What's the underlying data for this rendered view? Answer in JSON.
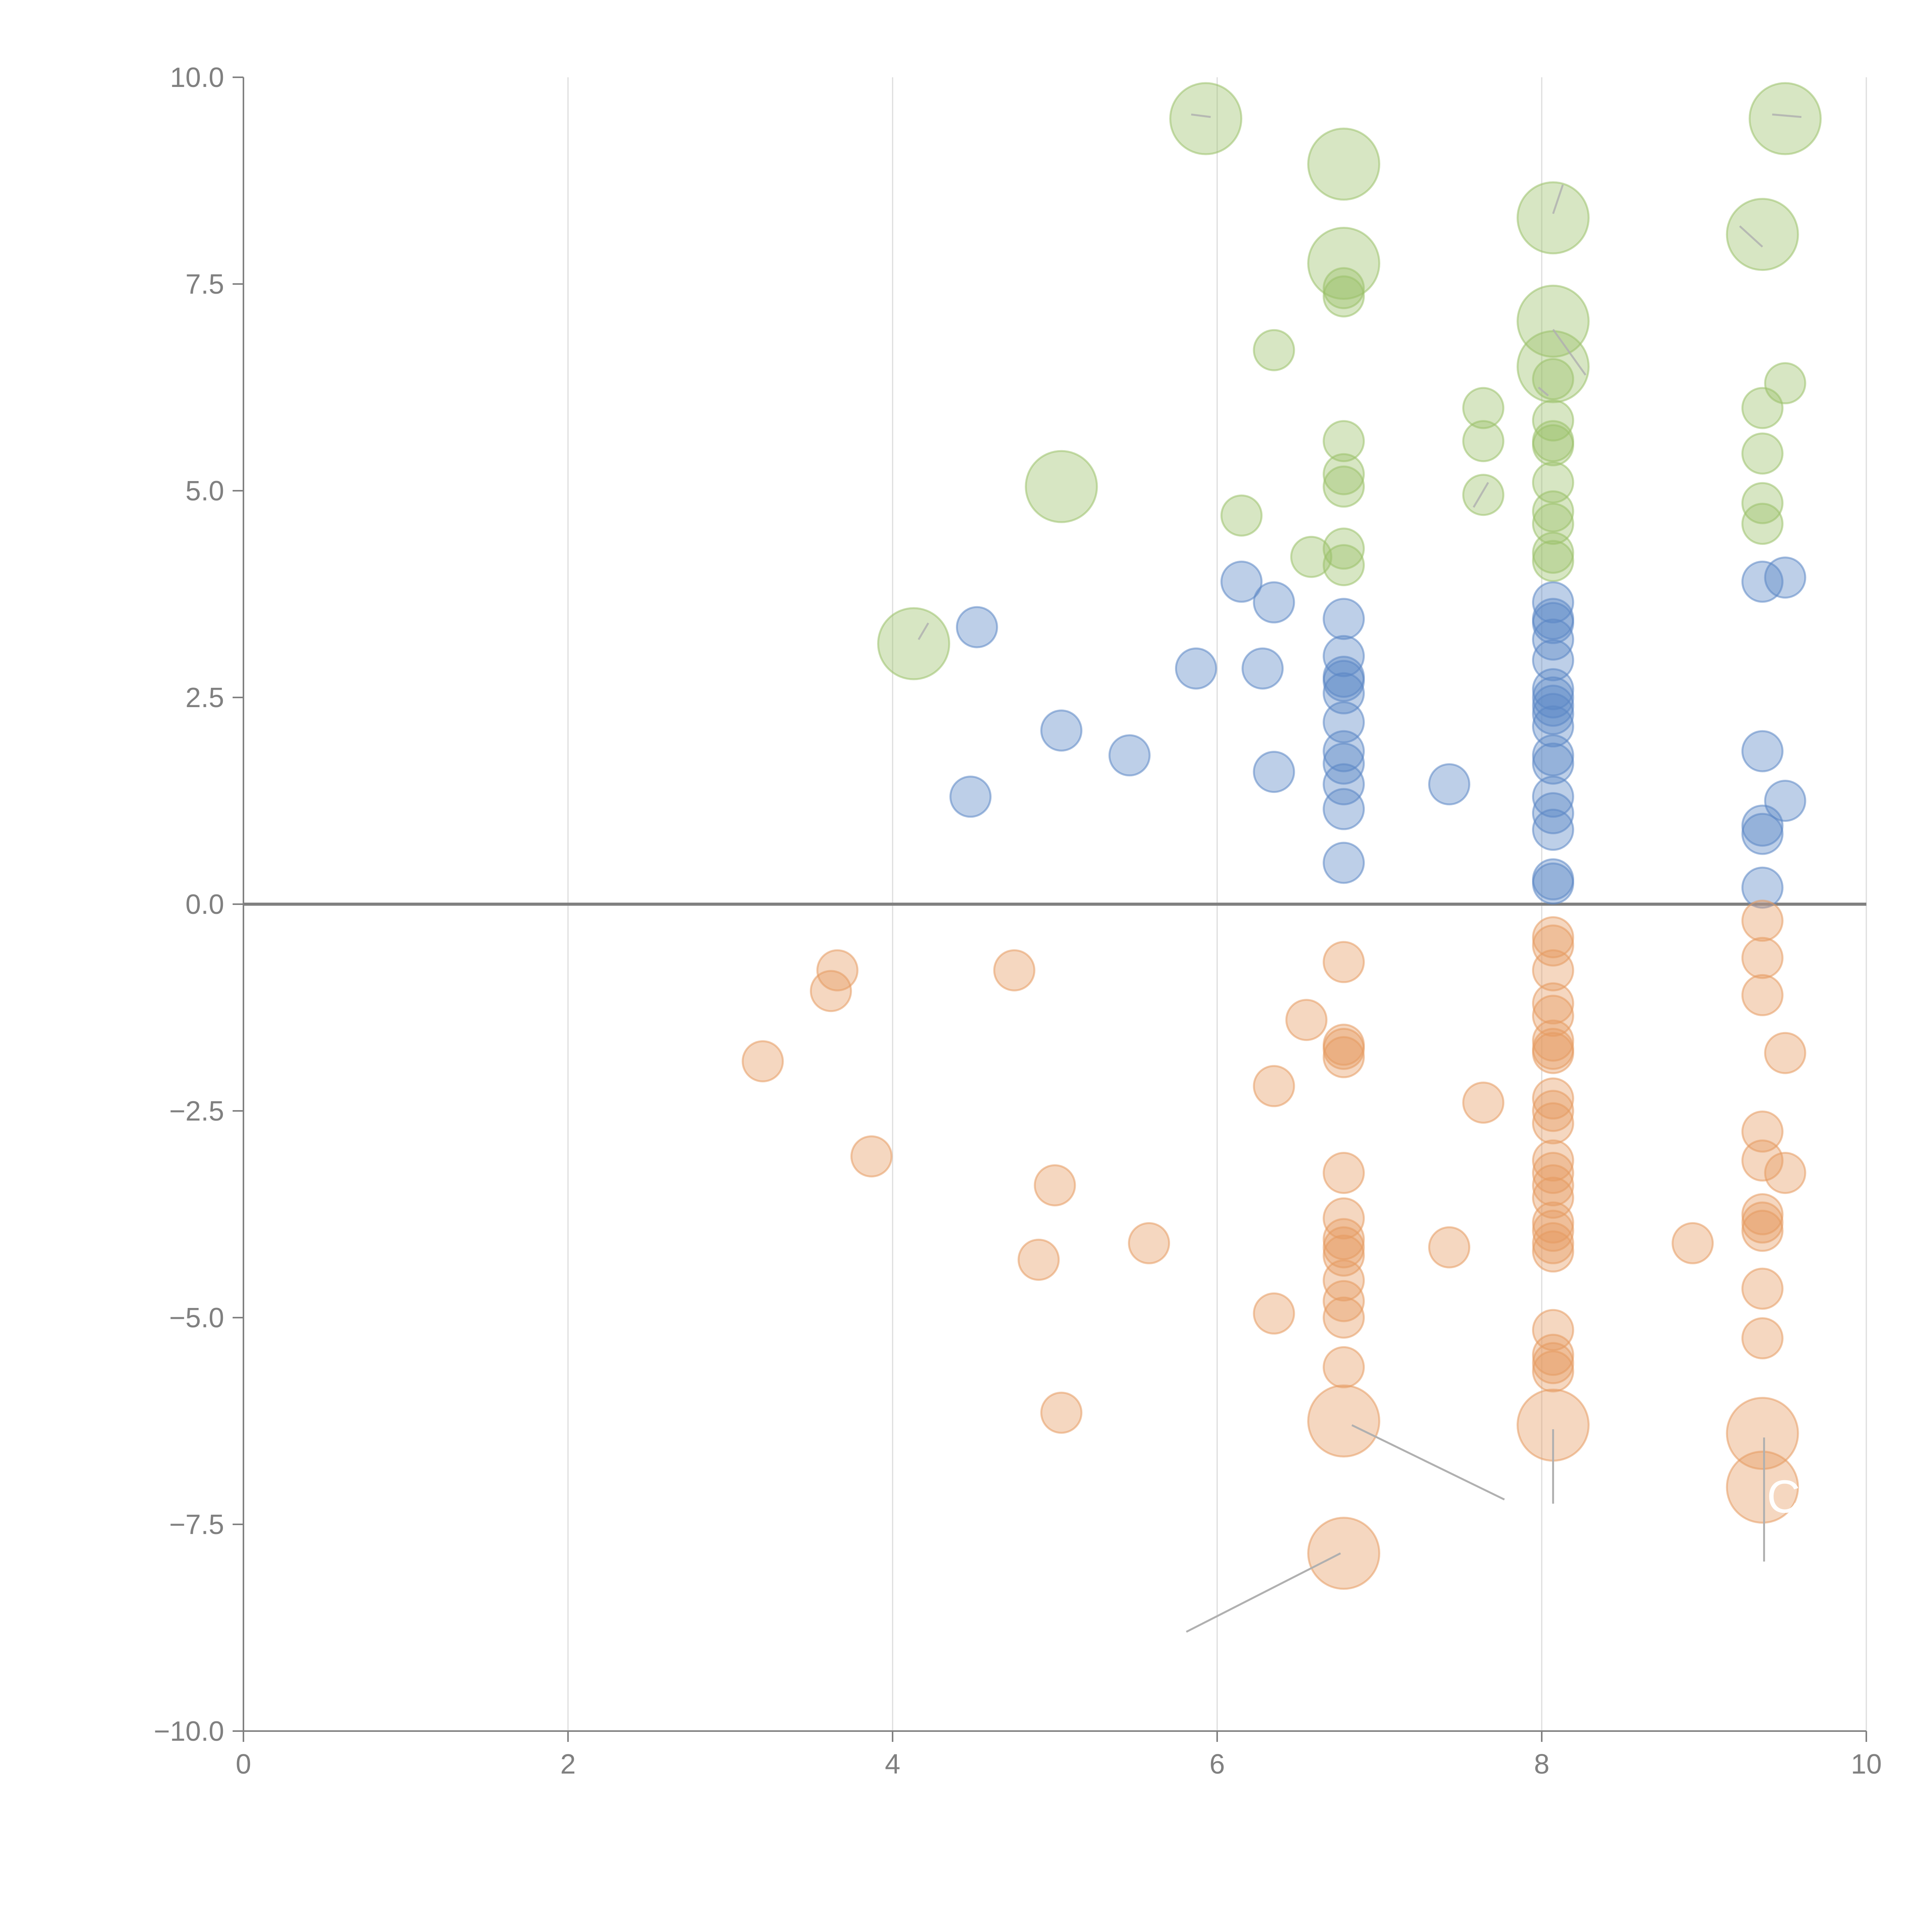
{
  "chart_data": {
    "type": "scatter",
    "title": "",
    "xlabel": "",
    "ylabel": "",
    "xlim": [
      0,
      10
    ],
    "ylim": [
      -10,
      10
    ],
    "grid": "vertical",
    "x_ticks": [
      "0",
      "2",
      "4",
      "6",
      "8",
      "10"
    ],
    "y_ticks": [
      "10.0",
      "7.5",
      "5.0",
      "2.5",
      "0.0",
      "−2.5",
      "−5.0",
      "−7.5",
      "−10.0"
    ],
    "colors": {
      "green": "#9bc16a",
      "blue": "#5b87c5",
      "orange": "#e59a61",
      "axis": "#808080",
      "grid": "#dcdcdc"
    },
    "series": [
      {
        "name": "green",
        "points": [
          {
            "x": 5.93,
            "y": 9.5,
            "s": 3
          },
          {
            "x": 6.78,
            "y": 8.95,
            "s": 3
          },
          {
            "x": 6.78,
            "y": 7.75,
            "s": 3
          },
          {
            "x": 6.78,
            "y": 7.45,
            "s": 1
          },
          {
            "x": 6.78,
            "y": 7.35,
            "s": 1
          },
          {
            "x": 6.35,
            "y": 6.7,
            "s": 1
          },
          {
            "x": 6.78,
            "y": 5.6,
            "s": 1
          },
          {
            "x": 6.78,
            "y": 5.2,
            "s": 1
          },
          {
            "x": 6.78,
            "y": 5.05,
            "s": 1
          },
          {
            "x": 6.78,
            "y": 4.3,
            "s": 1
          },
          {
            "x": 6.78,
            "y": 4.1,
            "s": 1
          },
          {
            "x": 6.58,
            "y": 4.2,
            "s": 1
          },
          {
            "x": 6.15,
            "y": 4.7,
            "s": 1
          },
          {
            "x": 5.04,
            "y": 5.05,
            "s": 3
          },
          {
            "x": 4.13,
            "y": 3.15,
            "s": 3
          },
          {
            "x": 7.64,
            "y": 6.0,
            "s": 1
          },
          {
            "x": 7.64,
            "y": 5.6,
            "s": 1
          },
          {
            "x": 7.64,
            "y": 4.95,
            "s": 1
          },
          {
            "x": 8.07,
            "y": 8.3,
            "s": 3
          },
          {
            "x": 8.07,
            "y": 7.05,
            "s": 3
          },
          {
            "x": 8.07,
            "y": 6.5,
            "s": 3
          },
          {
            "x": 8.07,
            "y": 6.35,
            "s": 1
          },
          {
            "x": 8.07,
            "y": 5.85,
            "s": 1
          },
          {
            "x": 8.07,
            "y": 5.6,
            "s": 1
          },
          {
            "x": 8.07,
            "y": 5.55,
            "s": 1
          },
          {
            "x": 8.07,
            "y": 5.1,
            "s": 1
          },
          {
            "x": 8.07,
            "y": 4.75,
            "s": 1
          },
          {
            "x": 8.07,
            "y": 4.6,
            "s": 1
          },
          {
            "x": 8.07,
            "y": 4.25,
            "s": 1
          },
          {
            "x": 8.07,
            "y": 4.15,
            "s": 1
          },
          {
            "x": 9.36,
            "y": 8.1,
            "s": 3
          },
          {
            "x": 9.5,
            "y": 9.5,
            "s": 3
          },
          {
            "x": 9.5,
            "y": 6.3,
            "s": 1
          },
          {
            "x": 9.36,
            "y": 6.0,
            "s": 1
          },
          {
            "x": 9.36,
            "y": 5.45,
            "s": 1
          },
          {
            "x": 9.36,
            "y": 4.85,
            "s": 1
          },
          {
            "x": 9.36,
            "y": 4.6,
            "s": 1
          }
        ]
      },
      {
        "name": "blue",
        "points": [
          {
            "x": 4.48,
            "y": 1.3,
            "s": 1
          },
          {
            "x": 4.52,
            "y": 3.35,
            "s": 1
          },
          {
            "x": 5.04,
            "y": 2.1,
            "s": 1
          },
          {
            "x": 5.46,
            "y": 1.8,
            "s": 1
          },
          {
            "x": 5.87,
            "y": 2.85,
            "s": 1
          },
          {
            "x": 6.28,
            "y": 2.85,
            "s": 1
          },
          {
            "x": 6.35,
            "y": 3.65,
            "s": 1
          },
          {
            "x": 6.15,
            "y": 3.9,
            "s": 1
          },
          {
            "x": 6.35,
            "y": 1.6,
            "s": 1
          },
          {
            "x": 6.78,
            "y": 3.45,
            "s": 1
          },
          {
            "x": 6.78,
            "y": 3.0,
            "s": 1
          },
          {
            "x": 6.78,
            "y": 2.75,
            "s": 1
          },
          {
            "x": 6.78,
            "y": 2.7,
            "s": 1
          },
          {
            "x": 6.78,
            "y": 2.55,
            "s": 1
          },
          {
            "x": 6.78,
            "y": 2.2,
            "s": 1
          },
          {
            "x": 6.78,
            "y": 1.85,
            "s": 1
          },
          {
            "x": 6.78,
            "y": 1.7,
            "s": 1
          },
          {
            "x": 6.78,
            "y": 1.45,
            "s": 1
          },
          {
            "x": 6.78,
            "y": 1.15,
            "s": 1
          },
          {
            "x": 6.78,
            "y": 0.5,
            "s": 1
          },
          {
            "x": 7.43,
            "y": 1.45,
            "s": 1
          },
          {
            "x": 8.07,
            "y": 3.65,
            "s": 1
          },
          {
            "x": 8.07,
            "y": 3.45,
            "s": 1
          },
          {
            "x": 8.07,
            "y": 3.4,
            "s": 1
          },
          {
            "x": 8.07,
            "y": 3.2,
            "s": 1
          },
          {
            "x": 8.07,
            "y": 2.95,
            "s": 1
          },
          {
            "x": 8.07,
            "y": 2.6,
            "s": 1
          },
          {
            "x": 8.07,
            "y": 2.5,
            "s": 1
          },
          {
            "x": 8.07,
            "y": 2.4,
            "s": 1
          },
          {
            "x": 8.07,
            "y": 2.3,
            "s": 1
          },
          {
            "x": 8.07,
            "y": 2.15,
            "s": 1
          },
          {
            "x": 8.07,
            "y": 1.8,
            "s": 1
          },
          {
            "x": 8.07,
            "y": 1.7,
            "s": 1
          },
          {
            "x": 8.07,
            "y": 1.3,
            "s": 1
          },
          {
            "x": 8.07,
            "y": 1.1,
            "s": 1
          },
          {
            "x": 8.07,
            "y": 0.9,
            "s": 1
          },
          {
            "x": 8.07,
            "y": 0.3,
            "s": 1
          },
          {
            "x": 8.07,
            "y": 0.25,
            "s": 1
          },
          {
            "x": 9.36,
            "y": 3.9,
            "s": 1
          },
          {
            "x": 9.5,
            "y": 3.95,
            "s": 1
          },
          {
            "x": 9.36,
            "y": 1.85,
            "s": 1
          },
          {
            "x": 9.5,
            "y": 1.25,
            "s": 1
          },
          {
            "x": 9.36,
            "y": 0.95,
            "s": 1
          },
          {
            "x": 9.36,
            "y": 0.85,
            "s": 1
          },
          {
            "x": 9.36,
            "y": 0.2,
            "s": 1
          }
        ]
      },
      {
        "name": "orange",
        "points": [
          {
            "x": 3.2,
            "y": -1.9,
            "s": 1
          },
          {
            "x": 3.62,
            "y": -1.05,
            "s": 1
          },
          {
            "x": 3.66,
            "y": -0.8,
            "s": 1
          },
          {
            "x": 3.87,
            "y": -3.05,
            "s": 1
          },
          {
            "x": 4.75,
            "y": -0.8,
            "s": 1
          },
          {
            "x": 5.0,
            "y": -3.4,
            "s": 1
          },
          {
            "x": 4.9,
            "y": -4.3,
            "s": 1
          },
          {
            "x": 5.04,
            "y": -6.15,
            "s": 1
          },
          {
            "x": 5.58,
            "y": -4.1,
            "s": 1
          },
          {
            "x": 6.55,
            "y": -1.4,
            "s": 1
          },
          {
            "x": 6.35,
            "y": -2.2,
            "s": 1
          },
          {
            "x": 6.35,
            "y": -4.95,
            "s": 1
          },
          {
            "x": 6.78,
            "y": -0.7,
            "s": 1
          },
          {
            "x": 6.78,
            "y": -1.7,
            "s": 1
          },
          {
            "x": 6.78,
            "y": -1.75,
            "s": 1
          },
          {
            "x": 6.78,
            "y": -1.85,
            "s": 1
          },
          {
            "x": 6.78,
            "y": -3.25,
            "s": 1
          },
          {
            "x": 6.78,
            "y": -3.8,
            "s": 1
          },
          {
            "x": 6.78,
            "y": -4.05,
            "s": 1
          },
          {
            "x": 6.78,
            "y": -4.15,
            "s": 1
          },
          {
            "x": 6.78,
            "y": -4.25,
            "s": 1
          },
          {
            "x": 6.78,
            "y": -4.55,
            "s": 1
          },
          {
            "x": 6.78,
            "y": -4.8,
            "s": 1
          },
          {
            "x": 6.78,
            "y": -5.0,
            "s": 1
          },
          {
            "x": 6.78,
            "y": -5.6,
            "s": 1
          },
          {
            "x": 6.78,
            "y": -6.25,
            "s": 3
          },
          {
            "x": 6.78,
            "y": -7.85,
            "s": 3
          },
          {
            "x": 7.43,
            "y": -4.15,
            "s": 1
          },
          {
            "x": 7.64,
            "y": -2.4,
            "s": 1
          },
          {
            "x": 8.07,
            "y": -0.4,
            "s": 1
          },
          {
            "x": 8.07,
            "y": -0.5,
            "s": 1
          },
          {
            "x": 8.07,
            "y": -0.8,
            "s": 1
          },
          {
            "x": 8.07,
            "y": -1.2,
            "s": 1
          },
          {
            "x": 8.07,
            "y": -1.35,
            "s": 1
          },
          {
            "x": 8.07,
            "y": -1.65,
            "s": 1
          },
          {
            "x": 8.07,
            "y": -1.75,
            "s": 1
          },
          {
            "x": 8.07,
            "y": -1.8,
            "s": 1
          },
          {
            "x": 8.07,
            "y": -2.35,
            "s": 1
          },
          {
            "x": 8.07,
            "y": -2.5,
            "s": 1
          },
          {
            "x": 8.07,
            "y": -2.65,
            "s": 1
          },
          {
            "x": 8.07,
            "y": -3.1,
            "s": 1
          },
          {
            "x": 8.07,
            "y": -3.25,
            "s": 1
          },
          {
            "x": 8.07,
            "y": -3.4,
            "s": 1
          },
          {
            "x": 8.07,
            "y": -3.55,
            "s": 1
          },
          {
            "x": 8.07,
            "y": -3.85,
            "s": 1
          },
          {
            "x": 8.07,
            "y": -3.95,
            "s": 1
          },
          {
            "x": 8.07,
            "y": -4.1,
            "s": 1
          },
          {
            "x": 8.07,
            "y": -4.2,
            "s": 1
          },
          {
            "x": 8.07,
            "y": -5.15,
            "s": 1
          },
          {
            "x": 8.07,
            "y": -5.45,
            "s": 1
          },
          {
            "x": 8.07,
            "y": -5.55,
            "s": 1
          },
          {
            "x": 8.07,
            "y": -5.65,
            "s": 1
          },
          {
            "x": 8.07,
            "y": -6.3,
            "s": 3
          },
          {
            "x": 8.93,
            "y": -4.1,
            "s": 1
          },
          {
            "x": 9.36,
            "y": -0.2,
            "s": 1
          },
          {
            "x": 9.36,
            "y": -0.65,
            "s": 1
          },
          {
            "x": 9.36,
            "y": -1.1,
            "s": 1
          },
          {
            "x": 9.5,
            "y": -1.8,
            "s": 1
          },
          {
            "x": 9.36,
            "y": -2.75,
            "s": 1
          },
          {
            "x": 9.36,
            "y": -3.1,
            "s": 1
          },
          {
            "x": 9.5,
            "y": -3.25,
            "s": 1
          },
          {
            "x": 9.36,
            "y": -3.75,
            "s": 1
          },
          {
            "x": 9.36,
            "y": -3.85,
            "s": 1
          },
          {
            "x": 9.36,
            "y": -3.95,
            "s": 1
          },
          {
            "x": 9.36,
            "y": -4.65,
            "s": 1
          },
          {
            "x": 9.36,
            "y": -5.25,
            "s": 1
          },
          {
            "x": 9.36,
            "y": -6.4,
            "s": 3
          },
          {
            "x": 9.36,
            "y": -7.05,
            "s": 3
          }
        ]
      }
    ],
    "leader_lines": [
      {
        "x1": 6.83,
        "y1": -6.3,
        "x2": 7.77,
        "y2": -7.2
      },
      {
        "x1": 8.07,
        "y1": -6.35,
        "x2": 8.07,
        "y2": -7.25
      },
      {
        "x1": 9.37,
        "y1": -6.45,
        "x2": 9.37,
        "y2": -7.95
      },
      {
        "x1": 6.76,
        "y1": -7.85,
        "x2": 5.81,
        "y2": -8.8
      },
      {
        "x1": 8.07,
        "y1": 8.35,
        "x2": 8.13,
        "y2": 8.7
      },
      {
        "x1": 9.36,
        "y1": 7.95,
        "x2": 9.22,
        "y2": 8.2
      },
      {
        "x1": 8.07,
        "y1": 6.95,
        "x2": 8.27,
        "y2": 6.4
      },
      {
        "x1": 8.04,
        "y1": 6.15,
        "x2": 7.98,
        "y2": 6.25
      },
      {
        "x1": 7.67,
        "y1": 5.1,
        "x2": 7.58,
        "y2": 4.8
      },
      {
        "x1": 4.16,
        "y1": 3.2,
        "x2": 4.22,
        "y2": 3.4
      },
      {
        "x1": 5.84,
        "y1": 9.55,
        "x2": 5.96,
        "y2": 9.52
      },
      {
        "x1": 9.42,
        "y1": 9.55,
        "x2": 9.6,
        "y2": 9.52
      }
    ],
    "annotations": [
      {
        "text": "C",
        "x": 9.49,
        "y": -7.17
      }
    ]
  }
}
